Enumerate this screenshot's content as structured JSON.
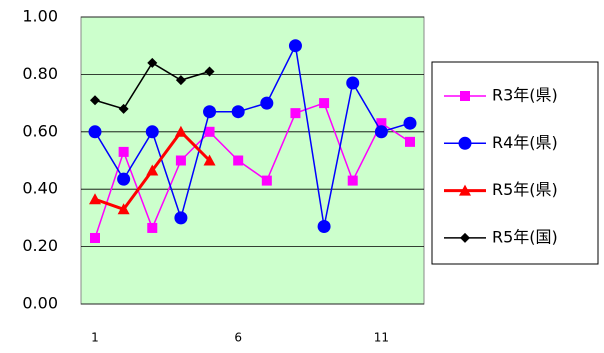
{
  "chart_data": {
    "type": "line",
    "categories": [
      "1",
      null,
      null,
      null,
      null,
      "6",
      null,
      null,
      null,
      null,
      "11",
      null
    ],
    "series": [
      {
        "name": "R3年(県)",
        "color": "#ff00ff",
        "marker": "square",
        "values": [
          0.23,
          0.53,
          0.265,
          0.5,
          0.6,
          0.5,
          0.43,
          0.665,
          0.7,
          0.43,
          0.63,
          0.565
        ]
      },
      {
        "name": "R4年(県)",
        "color": "#0000ff",
        "marker": "circle",
        "values": [
          0.6,
          0.435,
          0.6,
          0.3,
          0.67,
          0.67,
          0.7,
          0.9,
          0.27,
          0.77,
          0.6,
          0.63
        ]
      },
      {
        "name": "R5年(県)",
        "color": "#ff0000",
        "marker": "triangle",
        "values": [
          0.365,
          0.33,
          0.465,
          0.6,
          0.5,
          null,
          null,
          null,
          null,
          null,
          null,
          null
        ]
      },
      {
        "name": "R5年(国)",
        "color": "#000000",
        "marker": "diamond",
        "values": [
          0.71,
          0.68,
          0.84,
          0.78,
          0.81,
          null,
          null,
          null,
          null,
          null,
          null,
          null
        ]
      }
    ],
    "ylim": [
      0,
      1
    ],
    "yticks": [
      {
        "value": 0,
        "label": "0.00"
      },
      {
        "value": 0.2,
        "label": "0.20"
      },
      {
        "value": 0.4,
        "label": "0.40"
      },
      {
        "value": 0.6,
        "label": "0.60"
      },
      {
        "value": 0.8,
        "label": "0.80"
      },
      {
        "value": 1,
        "label": "1.00"
      }
    ],
    "grid": true,
    "legend": "right"
  }
}
